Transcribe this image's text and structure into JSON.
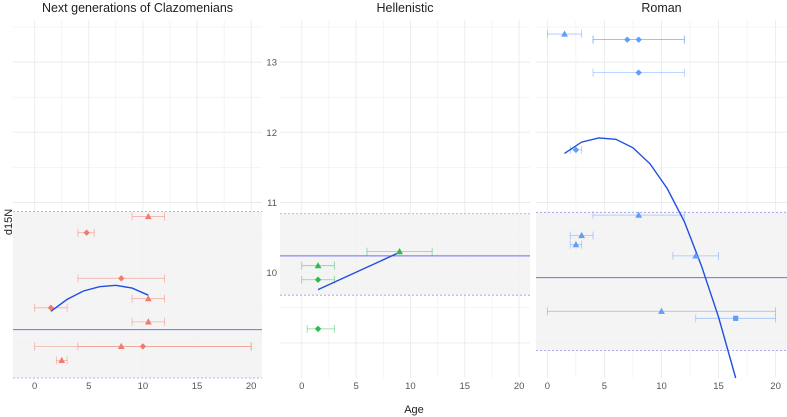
{
  "figure": {
    "xlabel": "Age",
    "ylabel": "d15N",
    "colors": {
      "clazomenians": "#F07B6E",
      "hellenistic": "#2DBA4E",
      "roman": "#619CFF",
      "fit": "#1F4FE0",
      "mean_line": "#6D6DFF",
      "band_fill": "#F2F2F2",
      "band_border": "#9A9AF0",
      "grid": "#EBEBEB"
    }
  },
  "chart_data": [
    {
      "type": "scatter",
      "title": "Next generations of Clazomenians",
      "xlim": [
        -2,
        21
      ],
      "ylim": [
        8.5,
        13.6
      ],
      "xticks": [
        0,
        5,
        10,
        15,
        20
      ],
      "yticks": [],
      "mean": 9.19,
      "band": [
        8.5,
        10.87
      ],
      "fit": {
        "x": [
          1.5,
          3,
          4.5,
          6,
          7.5,
          9,
          10.5
        ],
        "y": [
          9.45,
          9.62,
          9.74,
          9.8,
          9.82,
          9.78,
          9.68
        ]
      },
      "points": [
        {
          "x": 1.5,
          "y": 9.5,
          "shape": "diamond",
          "xerr": [
            0,
            3
          ]
        },
        {
          "x": 2.5,
          "y": 8.75,
          "shape": "triangle",
          "xerr": [
            2,
            3
          ]
        },
        {
          "x": 4.8,
          "y": 10.57,
          "shape": "diamond",
          "xerr": [
            4,
            5.5
          ]
        },
        {
          "x": 8,
          "y": 9.92,
          "shape": "diamond",
          "xerr": [
            4,
            12
          ]
        },
        {
          "x": 8,
          "y": 8.95,
          "shape": "triangle",
          "xerr": [
            0,
            20
          ]
        },
        {
          "x": 10,
          "y": 8.95,
          "shape": "diamond",
          "xerr": [
            4,
            20
          ]
        },
        {
          "x": 10.5,
          "y": 10.8,
          "shape": "triangle",
          "xerr": [
            9,
            12
          ]
        },
        {
          "x": 10.5,
          "y": 9.63,
          "shape": "triangle",
          "xerr": [
            9,
            12
          ]
        },
        {
          "x": 10.5,
          "y": 9.3,
          "shape": "triangle",
          "xerr": [
            9,
            12
          ]
        }
      ]
    },
    {
      "type": "scatter",
      "title": "Hellenistic",
      "xlim": [
        -2,
        21
      ],
      "ylim": [
        8.5,
        13.6
      ],
      "xticks": [
        0,
        5,
        10,
        15,
        20
      ],
      "yticks": [
        10,
        11,
        12,
        13
      ],
      "mean": 10.24,
      "band": [
        9.68,
        10.84
      ],
      "fit": {
        "x": [
          1.5,
          9
        ],
        "y": [
          9.76,
          10.29
        ]
      },
      "points": [
        {
          "x": 1.5,
          "y": 10.1,
          "shape": "triangle",
          "xerr": [
            0,
            3
          ]
        },
        {
          "x": 1.5,
          "y": 9.9,
          "shape": "diamond",
          "xerr": [
            0,
            3
          ]
        },
        {
          "x": 1.5,
          "y": 9.2,
          "shape": "diamond",
          "xerr": [
            0.5,
            3
          ]
        },
        {
          "x": 9,
          "y": 10.3,
          "shape": "triangle",
          "xerr": [
            6,
            12
          ]
        }
      ]
    },
    {
      "type": "scatter",
      "title": "Roman",
      "xlim": [
        -1,
        21
      ],
      "ylim": [
        8.5,
        13.6
      ],
      "xticks": [
        0,
        5,
        10,
        15,
        20
      ],
      "yticks": [],
      "mean": 9.93,
      "band": [
        8.89,
        10.86
      ],
      "fit": {
        "x": [
          1.5,
          3,
          4.5,
          6,
          7.5,
          9,
          10.5,
          12,
          13.5,
          15,
          16.5
        ],
        "y": [
          11.7,
          11.86,
          11.92,
          11.9,
          11.78,
          11.55,
          11.2,
          10.73,
          10.1,
          9.37,
          8.5
        ]
      },
      "points": [
        {
          "x": 1.5,
          "y": 13.4,
          "shape": "triangle",
          "xerr": [
            0,
            3
          ]
        },
        {
          "x": 7,
          "y": 13.32,
          "shape": "diamond",
          "xerr": [
            4,
            12
          ]
        },
        {
          "x": 8,
          "y": 13.32,
          "shape": "diamond",
          "xerr": [
            4,
            12
          ]
        },
        {
          "x": 8,
          "y": 12.85,
          "shape": "diamond",
          "xerr": [
            4,
            12
          ]
        },
        {
          "x": 2.5,
          "y": 11.75,
          "shape": "diamond",
          "xerr": [
            2,
            3
          ]
        },
        {
          "x": 8,
          "y": 10.82,
          "shape": "triangle",
          "xerr": [
            4,
            12
          ]
        },
        {
          "x": 3,
          "y": 10.53,
          "shape": "triangle",
          "xerr": [
            2,
            4
          ]
        },
        {
          "x": 2.5,
          "y": 10.4,
          "shape": "triangle",
          "xerr": [
            2,
            3
          ]
        },
        {
          "x": 13,
          "y": 10.24,
          "shape": "triangle",
          "xerr": [
            11,
            15
          ]
        },
        {
          "x": 10,
          "y": 9.45,
          "shape": "triangle",
          "xerr": [
            0,
            20
          ]
        },
        {
          "x": 16.5,
          "y": 9.35,
          "shape": "square",
          "xerr": [
            13,
            20
          ]
        }
      ]
    }
  ]
}
